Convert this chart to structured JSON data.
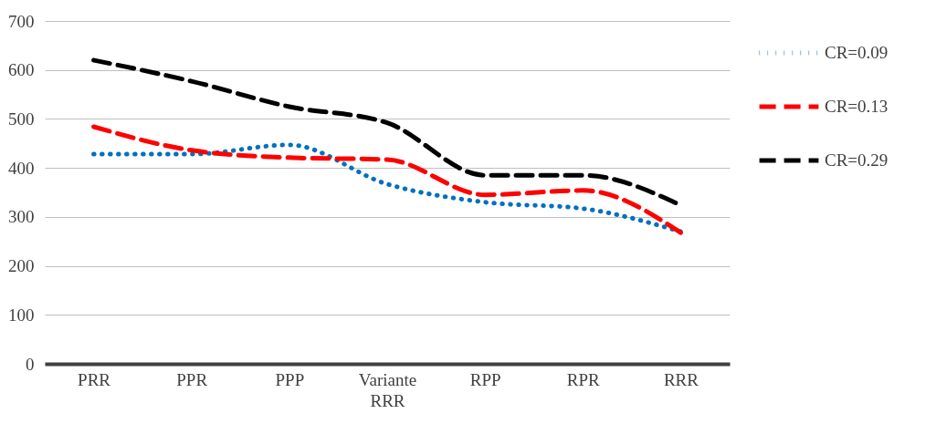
{
  "chart_data": {
    "type": "line",
    "categories": [
      "PRR",
      "PPR",
      "PPP",
      "Variante RRR",
      "RPP",
      "RPR",
      "RRR"
    ],
    "series": [
      {
        "name": "CR=0.09",
        "color": "#0070c0",
        "line_style": "dotted",
        "values": [
          428,
          428,
          447,
          367,
          330,
          317,
          270
        ]
      },
      {
        "name": "CR=0.13",
        "color": "#ff0000",
        "line_style": "dashed",
        "values": [
          484,
          436,
          421,
          417,
          345,
          354,
          268
        ]
      },
      {
        "name": "CR=0.29",
        "color": "#000000",
        "line_style": "dashed",
        "values": [
          620,
          577,
          525,
          492,
          385,
          385,
          324
        ]
      }
    ],
    "ylim": [
      0,
      700
    ],
    "yticks": [
      0,
      100,
      200,
      300,
      400,
      500,
      600,
      700
    ],
    "grid": "y",
    "legend": "right",
    "marker": "none"
  }
}
